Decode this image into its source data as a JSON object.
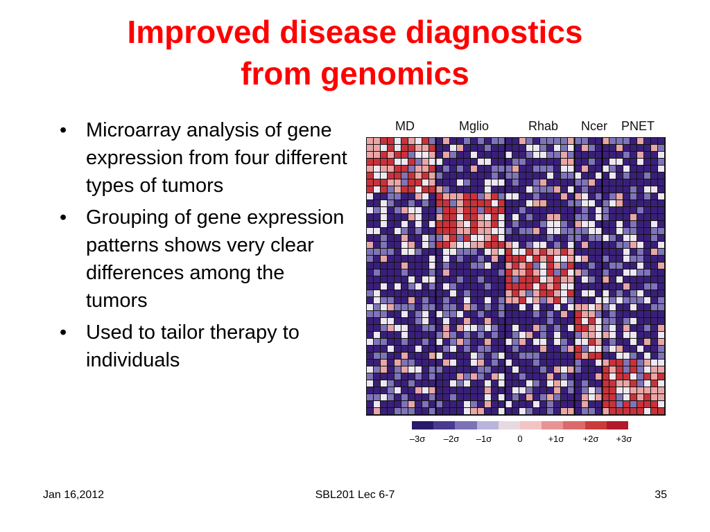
{
  "slide": {
    "title_line1": "Improved disease diagnostics",
    "title_line2": "from genomics",
    "bullets": [
      "Microarray analysis of gene expression from four different types of tumors",
      "Grouping of gene expression patterns shows very clear differences among the tumors",
      "Used to tailor therapy to individuals"
    ],
    "bullet_glyph": "•"
  },
  "figure": {
    "group_labels": [
      "MD",
      "Mglio",
      "Rhab",
      "Ncer",
      "PNET"
    ],
    "colorbar_labels": [
      "–3σ",
      "–2σ",
      "–1σ",
      "0",
      "+1σ",
      "+2σ",
      "+3σ"
    ],
    "colorbar_colors": [
      "#2b1a6b",
      "#4a3a90",
      "#7c72b8",
      "#b9b4db",
      "#e8d8e2",
      "#f2c4c4",
      "#e89494",
      "#dc6a6a",
      "#c83c3c",
      "#b01a2a"
    ],
    "heatmap_colors": {
      "low": "#3a1f7a",
      "mid_low": "#7f74b8",
      "neutral": "#ede8f2",
      "mid_high": "#e9a6a6",
      "high": "#c8323a"
    }
  },
  "footer": {
    "date": "Jan 16,2012",
    "course": "SBL201 Lec 6-7",
    "page": "35"
  }
}
